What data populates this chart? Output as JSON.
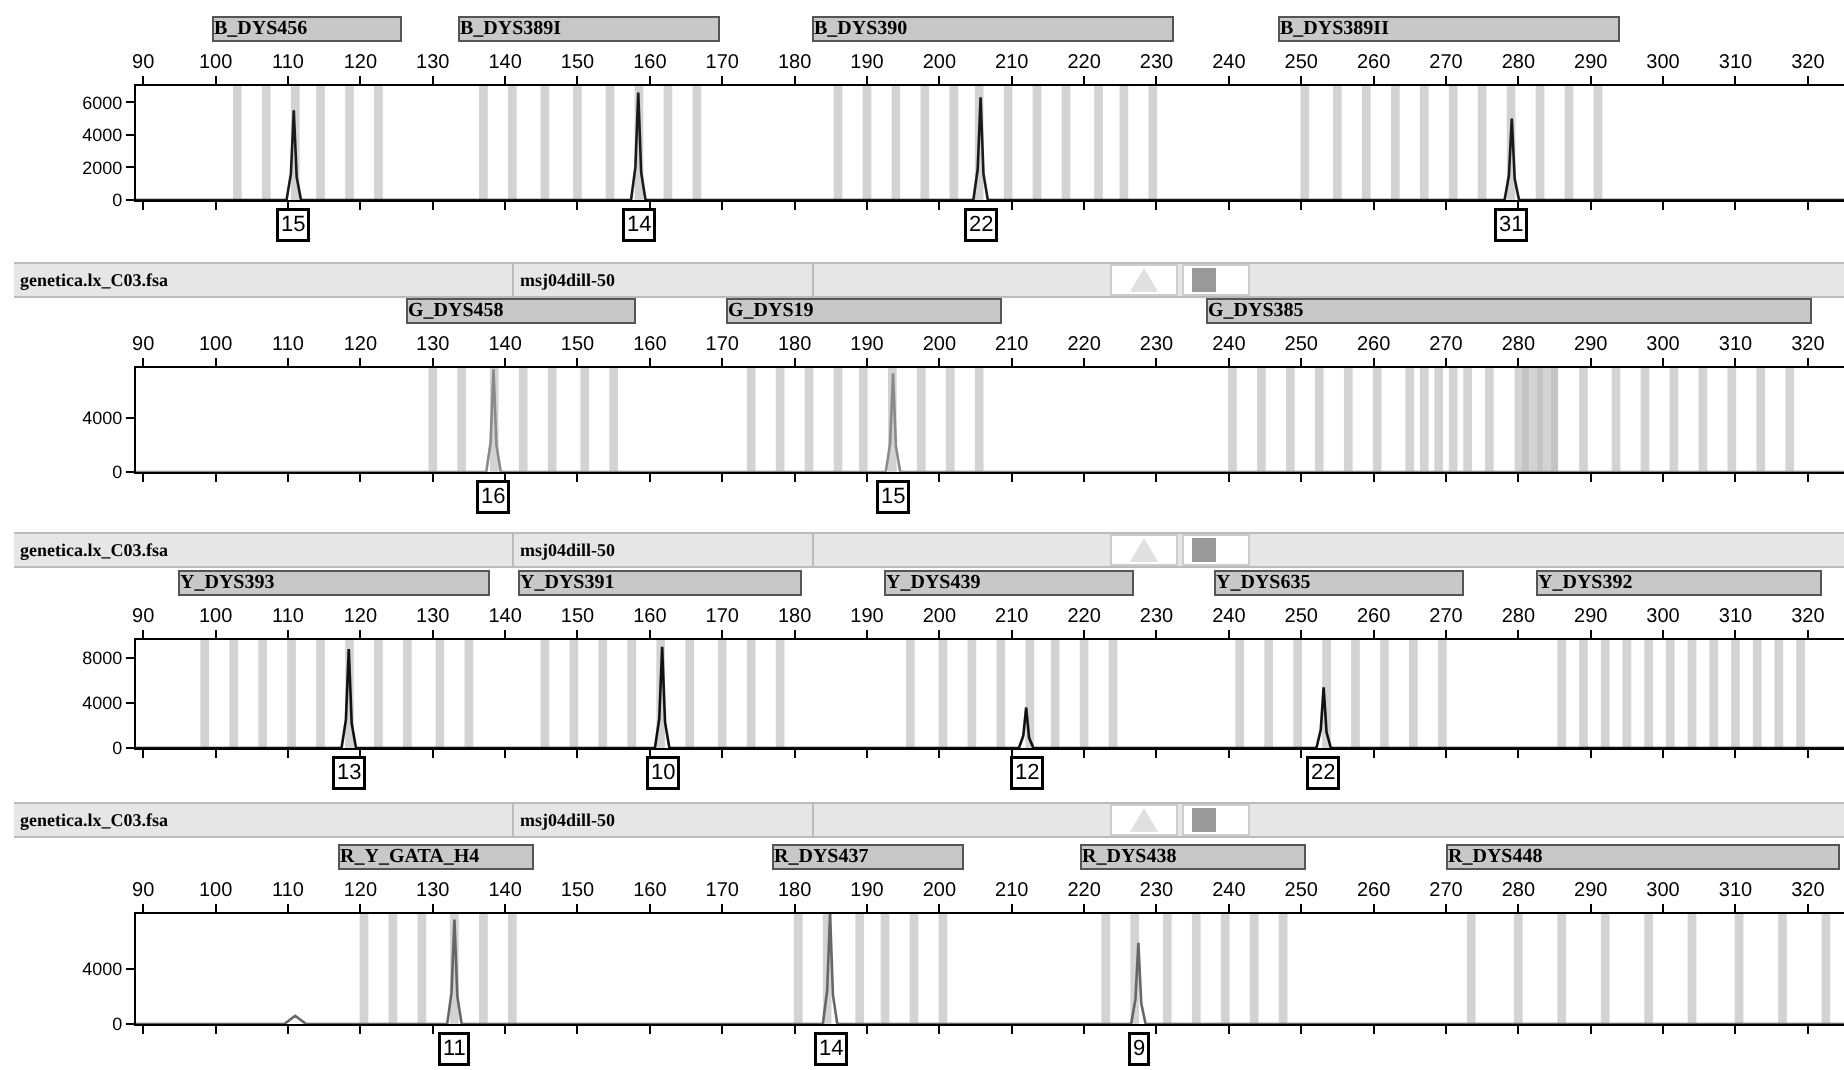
{
  "chart_data": [
    {
      "type": "line",
      "xlim": [
        89,
        325
      ],
      "xticks": [
        90,
        100,
        110,
        120,
        130,
        140,
        150,
        160,
        170,
        180,
        190,
        200,
        210,
        220,
        230,
        240,
        250,
        260,
        270,
        280,
        290,
        300,
        310,
        320
      ],
      "ylim": [
        0,
        7000
      ],
      "yticks": [
        0,
        2000,
        4000,
        6000
      ],
      "grid": false,
      "x": [
        89,
        109.8,
        110.4,
        110.8,
        111.2,
        111.8,
        157.4,
        158,
        158.4,
        158.8,
        159.4,
        204.7,
        205.3,
        205.7,
        206.1,
        206.7,
        278.1,
        278.7,
        279.1,
        279.5,
        280.1,
        325
      ],
      "series": [
        {
          "color": "#1a1a1a",
          "values": [
            0,
            0,
            1600,
            5500,
            1400,
            0,
            0,
            2000,
            6600,
            1700,
            0,
            0,
            1900,
            6300,
            1600,
            0,
            0,
            1500,
            5000,
            1300,
            0,
            0
          ]
        }
      ],
      "bands": [
        {
          "axis": "x",
          "from": 102.4,
          "to": 103.6,
          "color": "#d3d3d3"
        },
        {
          "axis": "x",
          "from": 106.4,
          "to": 107.6,
          "color": "#d3d3d3"
        },
        {
          "axis": "x",
          "from": 110.4,
          "to": 111.6,
          "color": "#d3d3d3"
        },
        {
          "axis": "x",
          "from": 113.9,
          "to": 115.1,
          "color": "#d3d3d3"
        },
        {
          "axis": "x",
          "from": 117.9,
          "to": 119.1,
          "color": "#d3d3d3"
        },
        {
          "axis": "x",
          "from": 121.9,
          "to": 123.1,
          "color": "#d3d3d3"
        },
        {
          "axis": "x",
          "from": 136.4,
          "to": 137.6,
          "color": "#d3d3d3"
        },
        {
          "axis": "x",
          "from": 140.4,
          "to": 141.6,
          "color": "#d3d3d3"
        },
        {
          "axis": "x",
          "from": 144.9,
          "to": 146.1,
          "color": "#d3d3d3"
        },
        {
          "axis": "x",
          "from": 149.4,
          "to": 150.6,
          "color": "#d3d3d3"
        },
        {
          "axis": "x",
          "from": 153.9,
          "to": 155.1,
          "color": "#d3d3d3"
        },
        {
          "axis": "x",
          "from": 157.9,
          "to": 159.1,
          "color": "#d3d3d3"
        },
        {
          "axis": "x",
          "from": 161.9,
          "to": 163.1,
          "color": "#d3d3d3"
        },
        {
          "axis": "x",
          "from": 165.9,
          "to": 167.1,
          "color": "#d3d3d3"
        },
        {
          "axis": "x",
          "from": 185.4,
          "to": 186.6,
          "color": "#d3d3d3"
        },
        {
          "axis": "x",
          "from": 189.4,
          "to": 190.6,
          "color": "#d3d3d3"
        },
        {
          "axis": "x",
          "from": 193.4,
          "to": 194.6,
          "color": "#d3d3d3"
        },
        {
          "axis": "x",
          "from": 197.4,
          "to": 198.6,
          "color": "#d3d3d3"
        },
        {
          "axis": "x",
          "from": 201.4,
          "to": 202.6,
          "color": "#d3d3d3"
        },
        {
          "axis": "x",
          "from": 204.9,
          "to": 206.1,
          "color": "#d3d3d3"
        },
        {
          "axis": "x",
          "from": 208.9,
          "to": 210.1,
          "color": "#d3d3d3"
        },
        {
          "axis": "x",
          "from": 212.9,
          "to": 214.1,
          "color": "#d3d3d3"
        },
        {
          "axis": "x",
          "from": 216.9,
          "to": 218.1,
          "color": "#d3d3d3"
        },
        {
          "axis": "x",
          "from": 221.4,
          "to": 222.6,
          "color": "#d3d3d3"
        },
        {
          "axis": "x",
          "from": 224.9,
          "to": 226.1,
          "color": "#d3d3d3"
        },
        {
          "axis": "x",
          "from": 228.9,
          "to": 230.1,
          "color": "#d3d3d3"
        },
        {
          "axis": "x",
          "from": 249.9,
          "to": 251.1,
          "color": "#d3d3d3"
        },
        {
          "axis": "x",
          "from": 254.4,
          "to": 255.6,
          "color": "#d3d3d3"
        },
        {
          "axis": "x",
          "from": 258.4,
          "to": 259.6,
          "color": "#d3d3d3"
        },
        {
          "axis": "x",
          "from": 262.4,
          "to": 263.6,
          "color": "#d3d3d3"
        },
        {
          "axis": "x",
          "from": 266.4,
          "to": 267.6,
          "color": "#d3d3d3"
        },
        {
          "axis": "x",
          "from": 270.4,
          "to": 271.6,
          "color": "#d3d3d3"
        },
        {
          "axis": "x",
          "from": 274.4,
          "to": 275.6,
          "color": "#d3d3d3"
        },
        {
          "axis": "x",
          "from": 278.4,
          "to": 279.6,
          "color": "#d3d3d3"
        },
        {
          "axis": "x",
          "from": 282.4,
          "to": 283.6,
          "color": "#d3d3d3"
        },
        {
          "axis": "x",
          "from": 286.4,
          "to": 287.6,
          "color": "#d3d3d3"
        },
        {
          "axis": "x",
          "from": 290.4,
          "to": 291.6,
          "color": "#d3d3d3"
        }
      ],
      "annotations": [
        "B_DYS456",
        "B_DYS389I",
        "B_DYS390",
        "B_DYS389II",
        {
          "text": "15",
          "x": 110.8,
          "y": 0
        },
        {
          "text": "14",
          "x": 158.4,
          "y": 0
        },
        {
          "text": "22",
          "x": 205.7,
          "y": 0
        },
        {
          "text": "31",
          "x": 279.1,
          "y": 0
        }
      ]
    },
    {
      "type": "line",
      "xlim": [
        89,
        325
      ],
      "xticks": [
        90,
        100,
        110,
        120,
        130,
        140,
        150,
        160,
        170,
        180,
        190,
        200,
        210,
        220,
        230,
        240,
        250,
        260,
        270,
        280,
        290,
        300,
        310,
        320
      ],
      "ylim": [
        0,
        7700
      ],
      "yticks": [
        0,
        4000
      ],
      "grid": false,
      "x": [
        89,
        137.4,
        138,
        138.4,
        138.8,
        139.4,
        192.6,
        193.2,
        193.6,
        194,
        194.6,
        325
      ],
      "series": [
        {
          "color": "#8a8a8a",
          "values": [
            0,
            0,
            2200,
            7600,
            2000,
            0,
            0,
            2100,
            7300,
            1900,
            0,
            0
          ]
        }
      ],
      "bands": [
        {
          "axis": "x",
          "from": 129.4,
          "to": 130.6,
          "color": "#d3d3d3"
        },
        {
          "axis": "x",
          "from": 133.4,
          "to": 134.6,
          "color": "#d3d3d3"
        },
        {
          "axis": "x",
          "from": 137.9,
          "to": 139.1,
          "color": "#d3d3d3"
        },
        {
          "axis": "x",
          "from": 141.9,
          "to": 143.1,
          "color": "#d3d3d3"
        },
        {
          "axis": "x",
          "from": 145.9,
          "to": 147.1,
          "color": "#d3d3d3"
        },
        {
          "axis": "x",
          "from": 150.4,
          "to": 151.6,
          "color": "#d3d3d3"
        },
        {
          "axis": "x",
          "from": 154.4,
          "to": 155.6,
          "color": "#d3d3d3"
        },
        {
          "axis": "x",
          "from": 173.4,
          "to": 174.6,
          "color": "#d3d3d3"
        },
        {
          "axis": "x",
          "from": 177.4,
          "to": 178.6,
          "color": "#d3d3d3"
        },
        {
          "axis": "x",
          "from": 181.4,
          "to": 182.6,
          "color": "#d3d3d3"
        },
        {
          "axis": "x",
          "from": 185.4,
          "to": 186.6,
          "color": "#d3d3d3"
        },
        {
          "axis": "x",
          "from": 188.9,
          "to": 190.1,
          "color": "#d3d3d3"
        },
        {
          "axis": "x",
          "from": 192.9,
          "to": 194.1,
          "color": "#d3d3d3"
        },
        {
          "axis": "x",
          "from": 196.9,
          "to": 198.1,
          "color": "#d3d3d3"
        },
        {
          "axis": "x",
          "from": 200.9,
          "to": 202.1,
          "color": "#d3d3d3"
        },
        {
          "axis": "x",
          "from": 204.9,
          "to": 206.1,
          "color": "#d3d3d3"
        },
        {
          "axis": "x",
          "from": 239.9,
          "to": 241.1,
          "color": "#d3d3d3"
        },
        {
          "axis": "x",
          "from": 243.9,
          "to": 245.1,
          "color": "#d3d3d3"
        },
        {
          "axis": "x",
          "from": 247.9,
          "to": 249.1,
          "color": "#d3d3d3"
        },
        {
          "axis": "x",
          "from": 251.9,
          "to": 253.1,
          "color": "#d3d3d3"
        },
        {
          "axis": "x",
          "from": 255.9,
          "to": 257.1,
          "color": "#d3d3d3"
        },
        {
          "axis": "x",
          "from": 259.9,
          "to": 261.1,
          "color": "#d3d3d3"
        },
        {
          "axis": "x",
          "from": 264.4,
          "to": 265.6,
          "color": "#d3d3d3"
        },
        {
          "axis": "x",
          "from": 266.4,
          "to": 267.6,
          "color": "#d3d3d3"
        },
        {
          "axis": "x",
          "from": 268.4,
          "to": 269.6,
          "color": "#d3d3d3"
        },
        {
          "axis": "x",
          "from": 270.4,
          "to": 271.6,
          "color": "#d3d3d3"
        },
        {
          "axis": "x",
          "from": 272.4,
          "to": 273.6,
          "color": "#d3d3d3"
        },
        {
          "axis": "x",
          "from": 275.4,
          "to": 276.6,
          "color": "#d3d3d3"
        },
        {
          "axis": "x",
          "from": 279.5,
          "to": 280.5,
          "color": "#d3d3d3"
        },
        {
          "axis": "x",
          "from": 280.5,
          "to": 281.5,
          "color": "#c4c4c4"
        },
        {
          "axis": "x",
          "from": 281.5,
          "to": 282.5,
          "color": "#d3d3d3"
        },
        {
          "axis": "x",
          "from": 282.5,
          "to": 283.5,
          "color": "#c4c4c4"
        },
        {
          "axis": "x",
          "from": 283.5,
          "to": 284.5,
          "color": "#d3d3d3"
        },
        {
          "axis": "x",
          "from": 284.5,
          "to": 285.5,
          "color": "#c4c4c4"
        },
        {
          "axis": "x",
          "from": 288.4,
          "to": 289.6,
          "color": "#d3d3d3"
        },
        {
          "axis": "x",
          "from": 292.9,
          "to": 294.1,
          "color": "#d3d3d3"
        },
        {
          "axis": "x",
          "from": 296.9,
          "to": 298.1,
          "color": "#d3d3d3"
        },
        {
          "axis": "x",
          "from": 300.9,
          "to": 302.1,
          "color": "#d3d3d3"
        },
        {
          "axis": "x",
          "from": 304.9,
          "to": 306.1,
          "color": "#d3d3d3"
        },
        {
          "axis": "x",
          "from": 308.9,
          "to": 310.1,
          "color": "#d3d3d3"
        },
        {
          "axis": "x",
          "from": 312.9,
          "to": 314.1,
          "color": "#d3d3d3"
        },
        {
          "axis": "x",
          "from": 316.9,
          "to": 318.1,
          "color": "#d3d3d3"
        }
      ],
      "annotations": [
        "genetica.lx_C03.fsa",
        "msj04dill-50",
        "G_DYS458",
        "G_DYS19",
        "G_DYS385",
        {
          "text": "16",
          "x": 138.4,
          "y": 0
        },
        {
          "text": "15",
          "x": 193.6,
          "y": 0
        }
      ]
    },
    {
      "type": "line",
      "xlim": [
        89,
        325
      ],
      "xticks": [
        90,
        100,
        110,
        120,
        130,
        140,
        150,
        160,
        170,
        180,
        190,
        200,
        210,
        220,
        230,
        240,
        250,
        260,
        270,
        280,
        290,
        300,
        310,
        320
      ],
      "ylim": [
        0,
        9600
      ],
      "yticks": [
        0,
        4000,
        8000
      ],
      "grid": false,
      "x": [
        89,
        117.4,
        118,
        118.4,
        118.8,
        119.4,
        160.7,
        161.3,
        161.7,
        162.1,
        162.7,
        211,
        211.6,
        212,
        212.4,
        213,
        252.1,
        252.7,
        253.1,
        253.5,
        254.1,
        325
      ],
      "series": [
        {
          "color": "#111111",
          "values": [
            0,
            0,
            2500,
            8800,
            2200,
            0,
            0,
            2600,
            9000,
            2300,
            0,
            0,
            1100,
            3600,
            900,
            0,
            0,
            1600,
            5400,
            1400,
            0,
            0
          ]
        }
      ],
      "bands": [
        {
          "axis": "x",
          "from": 97.9,
          "to": 99.1,
          "color": "#d3d3d3"
        },
        {
          "axis": "x",
          "from": 101.9,
          "to": 103.1,
          "color": "#d3d3d3"
        },
        {
          "axis": "x",
          "from": 105.9,
          "to": 107.1,
          "color": "#d3d3d3"
        },
        {
          "axis": "x",
          "from": 109.9,
          "to": 111.1,
          "color": "#d3d3d3"
        },
        {
          "axis": "x",
          "from": 113.9,
          "to": 115.1,
          "color": "#d3d3d3"
        },
        {
          "axis": "x",
          "from": 117.9,
          "to": 119.1,
          "color": "#d3d3d3"
        },
        {
          "axis": "x",
          "from": 121.9,
          "to": 123.1,
          "color": "#d3d3d3"
        },
        {
          "axis": "x",
          "from": 125.9,
          "to": 127.1,
          "color": "#d3d3d3"
        },
        {
          "axis": "x",
          "from": 130.4,
          "to": 131.6,
          "color": "#d3d3d3"
        },
        {
          "axis": "x",
          "from": 134.4,
          "to": 135.6,
          "color": "#d3d3d3"
        },
        {
          "axis": "x",
          "from": 144.9,
          "to": 146.1,
          "color": "#d3d3d3"
        },
        {
          "axis": "x",
          "from": 148.9,
          "to": 150.1,
          "color": "#d3d3d3"
        },
        {
          "axis": "x",
          "from": 152.9,
          "to": 154.1,
          "color": "#d3d3d3"
        },
        {
          "axis": "x",
          "from": 156.9,
          "to": 158.1,
          "color": "#d3d3d3"
        },
        {
          "axis": "x",
          "from": 160.9,
          "to": 162.1,
          "color": "#d3d3d3"
        },
        {
          "axis": "x",
          "from": 164.9,
          "to": 166.1,
          "color": "#d3d3d3"
        },
        {
          "axis": "x",
          "from": 169.4,
          "to": 170.6,
          "color": "#d3d3d3"
        },
        {
          "axis": "x",
          "from": 173.4,
          "to": 174.6,
          "color": "#d3d3d3"
        },
        {
          "axis": "x",
          "from": 177.4,
          "to": 178.6,
          "color": "#d3d3d3"
        },
        {
          "axis": "x",
          "from": 195.4,
          "to": 196.6,
          "color": "#d3d3d3"
        },
        {
          "axis": "x",
          "from": 199.9,
          "to": 201.1,
          "color": "#d3d3d3"
        },
        {
          "axis": "x",
          "from": 203.9,
          "to": 205.1,
          "color": "#d3d3d3"
        },
        {
          "axis": "x",
          "from": 207.9,
          "to": 209.1,
          "color": "#d3d3d3"
        },
        {
          "axis": "x",
          "from": 211.9,
          "to": 213.1,
          "color": "#d3d3d3"
        },
        {
          "axis": "x",
          "from": 215.4,
          "to": 216.6,
          "color": "#d3d3d3"
        },
        {
          "axis": "x",
          "from": 219.4,
          "to": 220.6,
          "color": "#d3d3d3"
        },
        {
          "axis": "x",
          "from": 223.4,
          "to": 224.6,
          "color": "#d3d3d3"
        },
        {
          "axis": "x",
          "from": 240.9,
          "to": 242.1,
          "color": "#d3d3d3"
        },
        {
          "axis": "x",
          "from": 244.9,
          "to": 246.1,
          "color": "#d3d3d3"
        },
        {
          "axis": "x",
          "from": 248.9,
          "to": 250.1,
          "color": "#d3d3d3"
        },
        {
          "axis": "x",
          "from": 252.9,
          "to": 254.1,
          "color": "#d3d3d3"
        },
        {
          "axis": "x",
          "from": 256.9,
          "to": 258.1,
          "color": "#d3d3d3"
        },
        {
          "axis": "x",
          "from": 260.9,
          "to": 262.1,
          "color": "#d3d3d3"
        },
        {
          "axis": "x",
          "from": 264.9,
          "to": 266.1,
          "color": "#d3d3d3"
        },
        {
          "axis": "x",
          "from": 268.9,
          "to": 270.1,
          "color": "#d3d3d3"
        },
        {
          "axis": "x",
          "from": 285.4,
          "to": 286.6,
          "color": "#d3d3d3"
        },
        {
          "axis": "x",
          "from": 288.4,
          "to": 289.6,
          "color": "#d3d3d3"
        },
        {
          "axis": "x",
          "from": 291.4,
          "to": 292.6,
          "color": "#d3d3d3"
        },
        {
          "axis": "x",
          "from": 294.4,
          "to": 295.6,
          "color": "#d3d3d3"
        },
        {
          "axis": "x",
          "from": 297.4,
          "to": 298.6,
          "color": "#d3d3d3"
        },
        {
          "axis": "x",
          "from": 300.4,
          "to": 301.6,
          "color": "#d3d3d3"
        },
        {
          "axis": "x",
          "from": 303.4,
          "to": 304.6,
          "color": "#d3d3d3"
        },
        {
          "axis": "x",
          "from": 306.4,
          "to": 307.6,
          "color": "#d3d3d3"
        },
        {
          "axis": "x",
          "from": 309.4,
          "to": 310.6,
          "color": "#d3d3d3"
        },
        {
          "axis": "x",
          "from": 312.4,
          "to": 313.6,
          "color": "#d3d3d3"
        },
        {
          "axis": "x",
          "from": 315.4,
          "to": 316.6,
          "color": "#d3d3d3"
        },
        {
          "axis": "x",
          "from": 318.4,
          "to": 319.6,
          "color": "#d3d3d3"
        }
      ],
      "annotations": [
        "genetica.lx_C03.fsa",
        "msj04dill-50",
        "Y_DYS393",
        "Y_DYS391",
        "Y_DYS439",
        "Y_DYS635",
        "Y_DYS392",
        {
          "text": "13",
          "x": 118.4,
          "y": 0
        },
        {
          "text": "10",
          "x": 161.7,
          "y": 0
        },
        {
          "text": "12",
          "x": 212,
          "y": 0
        },
        {
          "text": "22",
          "x": 253.1,
          "y": 0
        }
      ]
    },
    {
      "type": "line",
      "xlim": [
        89,
        325
      ],
      "xticks": [
        90,
        100,
        110,
        120,
        130,
        140,
        150,
        160,
        170,
        180,
        190,
        200,
        210,
        220,
        230,
        240,
        250,
        260,
        270,
        280,
        290,
        300,
        310,
        320
      ],
      "ylim": [
        0,
        8000
      ],
      "yticks": [
        0,
        4000
      ],
      "grid": false,
      "x": [
        89,
        109.5,
        111,
        112.5,
        132,
        132.6,
        133,
        133.4,
        134,
        183.9,
        184.5,
        184.9,
        185.3,
        185.9,
        226.5,
        227.1,
        227.5,
        227.9,
        228.5,
        325
      ],
      "series": [
        {
          "color": "#666666",
          "values": [
            0,
            0,
            600,
            0,
            0,
            2300,
            7600,
            2000,
            0,
            0,
            2400,
            8000,
            2100,
            0,
            0,
            1800,
            5900,
            1500,
            0,
            0
          ]
        }
      ],
      "bands": [
        {
          "axis": "x",
          "from": 119.9,
          "to": 121.1,
          "color": "#d3d3d3"
        },
        {
          "axis": "x",
          "from": 123.9,
          "to": 125.1,
          "color": "#d3d3d3"
        },
        {
          "axis": "x",
          "from": 127.9,
          "to": 129.1,
          "color": "#d3d3d3"
        },
        {
          "axis": "x",
          "from": 132.4,
          "to": 133.6,
          "color": "#d3d3d3"
        },
        {
          "axis": "x",
          "from": 136.4,
          "to": 137.6,
          "color": "#d3d3d3"
        },
        {
          "axis": "x",
          "from": 140.4,
          "to": 141.6,
          "color": "#d3d3d3"
        },
        {
          "axis": "x",
          "from": 179.9,
          "to": 181.1,
          "color": "#d3d3d3"
        },
        {
          "axis": "x",
          "from": 183.9,
          "to": 185.1,
          "color": "#d3d3d3"
        },
        {
          "axis": "x",
          "from": 188.4,
          "to": 189.6,
          "color": "#d3d3d3"
        },
        {
          "axis": "x",
          "from": 191.9,
          "to": 193.1,
          "color": "#d3d3d3"
        },
        {
          "axis": "x",
          "from": 195.9,
          "to": 197.1,
          "color": "#d3d3d3"
        },
        {
          "axis": "x",
          "from": 199.9,
          "to": 201.1,
          "color": "#d3d3d3"
        },
        {
          "axis": "x",
          "from": 222.4,
          "to": 223.6,
          "color": "#d3d3d3"
        },
        {
          "axis": "x",
          "from": 226.4,
          "to": 227.6,
          "color": "#d3d3d3"
        },
        {
          "axis": "x",
          "from": 230.9,
          "to": 232.1,
          "color": "#d3d3d3"
        },
        {
          "axis": "x",
          "from": 234.9,
          "to": 236.1,
          "color": "#d3d3d3"
        },
        {
          "axis": "x",
          "from": 238.9,
          "to": 240.1,
          "color": "#d3d3d3"
        },
        {
          "axis": "x",
          "from": 242.9,
          "to": 244.1,
          "color": "#d3d3d3"
        },
        {
          "axis": "x",
          "from": 246.9,
          "to": 248.1,
          "color": "#d3d3d3"
        },
        {
          "axis": "x",
          "from": 272.9,
          "to": 274.1,
          "color": "#d3d3d3"
        },
        {
          "axis": "x",
          "from": 279.4,
          "to": 280.6,
          "color": "#d3d3d3"
        },
        {
          "axis": "x",
          "from": 285.4,
          "to": 286.6,
          "color": "#d3d3d3"
        },
        {
          "axis": "x",
          "from": 291.4,
          "to": 292.6,
          "color": "#d3d3d3"
        },
        {
          "axis": "x",
          "from": 297.4,
          "to": 298.6,
          "color": "#d3d3d3"
        },
        {
          "axis": "x",
          "from": 303.4,
          "to": 304.6,
          "color": "#d3d3d3"
        },
        {
          "axis": "x",
          "from": 309.9,
          "to": 311.1,
          "color": "#d3d3d3"
        },
        {
          "axis": "x",
          "from": 315.9,
          "to": 317.1,
          "color": "#d3d3d3"
        },
        {
          "axis": "x",
          "from": 321.9,
          "to": 323.1,
          "color": "#d3d3d3"
        }
      ],
      "annotations": [
        "genetica.lx_C03.fsa",
        "msj04dill-50",
        "R_Y_GATA_H4",
        "R_DYS437",
        "R_DYS438",
        "R_DYS448",
        {
          "text": "11",
          "x": 133,
          "y": 0
        },
        {
          "text": "14",
          "x": 184.9,
          "y": 0
        },
        {
          "text": "9",
          "x": 227.5,
          "y": 0
        }
      ]
    }
  ]
}
